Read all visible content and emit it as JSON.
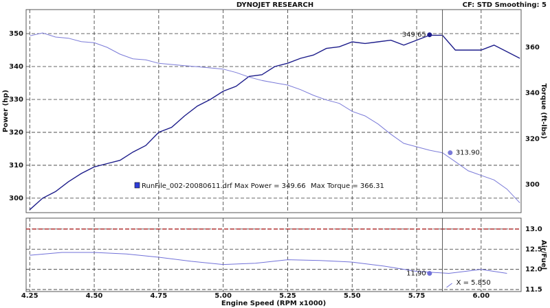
{
  "chart_data": [
    {
      "type": "line",
      "title": "DYNOJET RESEARCH",
      "subtitle": "CF: STD  Smoothing: 5",
      "ylabel": "Power (hp)",
      "y2label": "Torque (ft-lbs)",
      "x": [
        4.25,
        4.3,
        4.35,
        4.4,
        4.45,
        4.5,
        4.55,
        4.6,
        4.65,
        4.7,
        4.75,
        4.8,
        4.85,
        4.9,
        4.95,
        5.0,
        5.05,
        5.1,
        5.15,
        5.2,
        5.25,
        5.3,
        5.35,
        5.4,
        5.45,
        5.5,
        5.55,
        5.6,
        5.65,
        5.7,
        5.75,
        5.8,
        5.85,
        5.9,
        5.95,
        6.0,
        6.05,
        6.1,
        6.15
      ],
      "series": [
        {
          "name": "RunFile_002-20080611.drf Max Power = 349.66",
          "color": "#1c1c8a",
          "values": [
            296.5,
            300,
            302,
            305,
            307.5,
            309.5,
            310.5,
            311.5,
            314,
            316,
            320,
            321.5,
            325,
            328,
            330,
            332.5,
            334,
            337,
            337.5,
            340,
            341,
            342.5,
            343.5,
            345.5,
            346,
            347.5,
            347,
            347.5,
            348,
            346.5,
            348,
            349.5,
            349.5,
            345,
            345,
            345,
            346.5,
            344.5,
            342.5
          ]
        },
        {
          "name": "Max Torque = 366.31",
          "color": "#7a7ad8",
          "axis": "y2",
          "values": [
            365,
            366.3,
            364.5,
            364,
            362.5,
            362,
            360,
            357,
            355,
            354.5,
            353,
            352.5,
            352,
            351.5,
            351,
            350.5,
            349,
            347,
            345.5,
            344.5,
            343.5,
            341.5,
            339,
            337,
            335.5,
            332,
            330,
            326.5,
            322,
            318,
            316.5,
            315,
            313.9,
            310,
            306,
            304,
            302,
            298,
            292
          ]
        }
      ],
      "markers": [
        {
          "series": 0,
          "x": 5.8,
          "y": 349.65,
          "label": "349.65"
        },
        {
          "series": 1,
          "x": 5.88,
          "y": 313.9,
          "label": "313.90"
        }
      ],
      "cursor_x": 5.85,
      "xlim": [
        4.236,
        6.155
      ],
      "xticks": [
        4.25,
        4.5,
        4.75,
        5,
        5.25,
        5.5,
        5.75,
        6
      ],
      "ylim": [
        295.6,
        357.3
      ],
      "yticks": [
        300,
        310,
        320,
        330,
        340,
        350
      ],
      "y2lim": [
        287.7,
        376.5
      ],
      "y2ticks": [
        300,
        320,
        340,
        360
      ],
      "grid": true
    },
    {
      "type": "line",
      "xlabel": "Engine Speed (RPM x1000)",
      "y2label": "Air/Fuel",
      "x": [
        4.25,
        4.375,
        4.5,
        4.625,
        4.75,
        4.875,
        5.0,
        5.125,
        5.25,
        5.375,
        5.5,
        5.625,
        5.75,
        5.875,
        6.0,
        6.1
      ],
      "series": [
        {
          "color": "#7070d8",
          "values": [
            12.35,
            12.42,
            12.42,
            12.38,
            12.3,
            12.2,
            12.12,
            12.15,
            12.24,
            12.22,
            12.18,
            12.08,
            11.95,
            11.9,
            12.0,
            11.9
          ]
        }
      ],
      "markers": [
        {
          "series": 0,
          "x": 5.8,
          "y": 11.9,
          "label": "11.90"
        }
      ],
      "reference_line": {
        "y": 13.0,
        "color": "#b03030"
      },
      "cursor_x": 5.85,
      "cursor_label": "X = 5.850",
      "xlim": [
        4.236,
        6.155
      ],
      "xticks": [
        4.25,
        {
          "value": 4.5,
          "label": "4.50"
        },
        4.75,
        {
          "value": 5,
          "label": "5.00"
        },
        5.25,
        {
          "value": 5.5,
          "label": "5.50"
        },
        5.75,
        {
          "value": 6,
          "label": "6.00"
        }
      ],
      "ylim": [
        11.45,
        13.27
      ],
      "yticks": [
        11.5,
        {
          "value": 12,
          "label": "12.0"
        },
        12.5,
        {
          "value": 13,
          "label": "13.0"
        }
      ],
      "grid": true
    }
  ]
}
